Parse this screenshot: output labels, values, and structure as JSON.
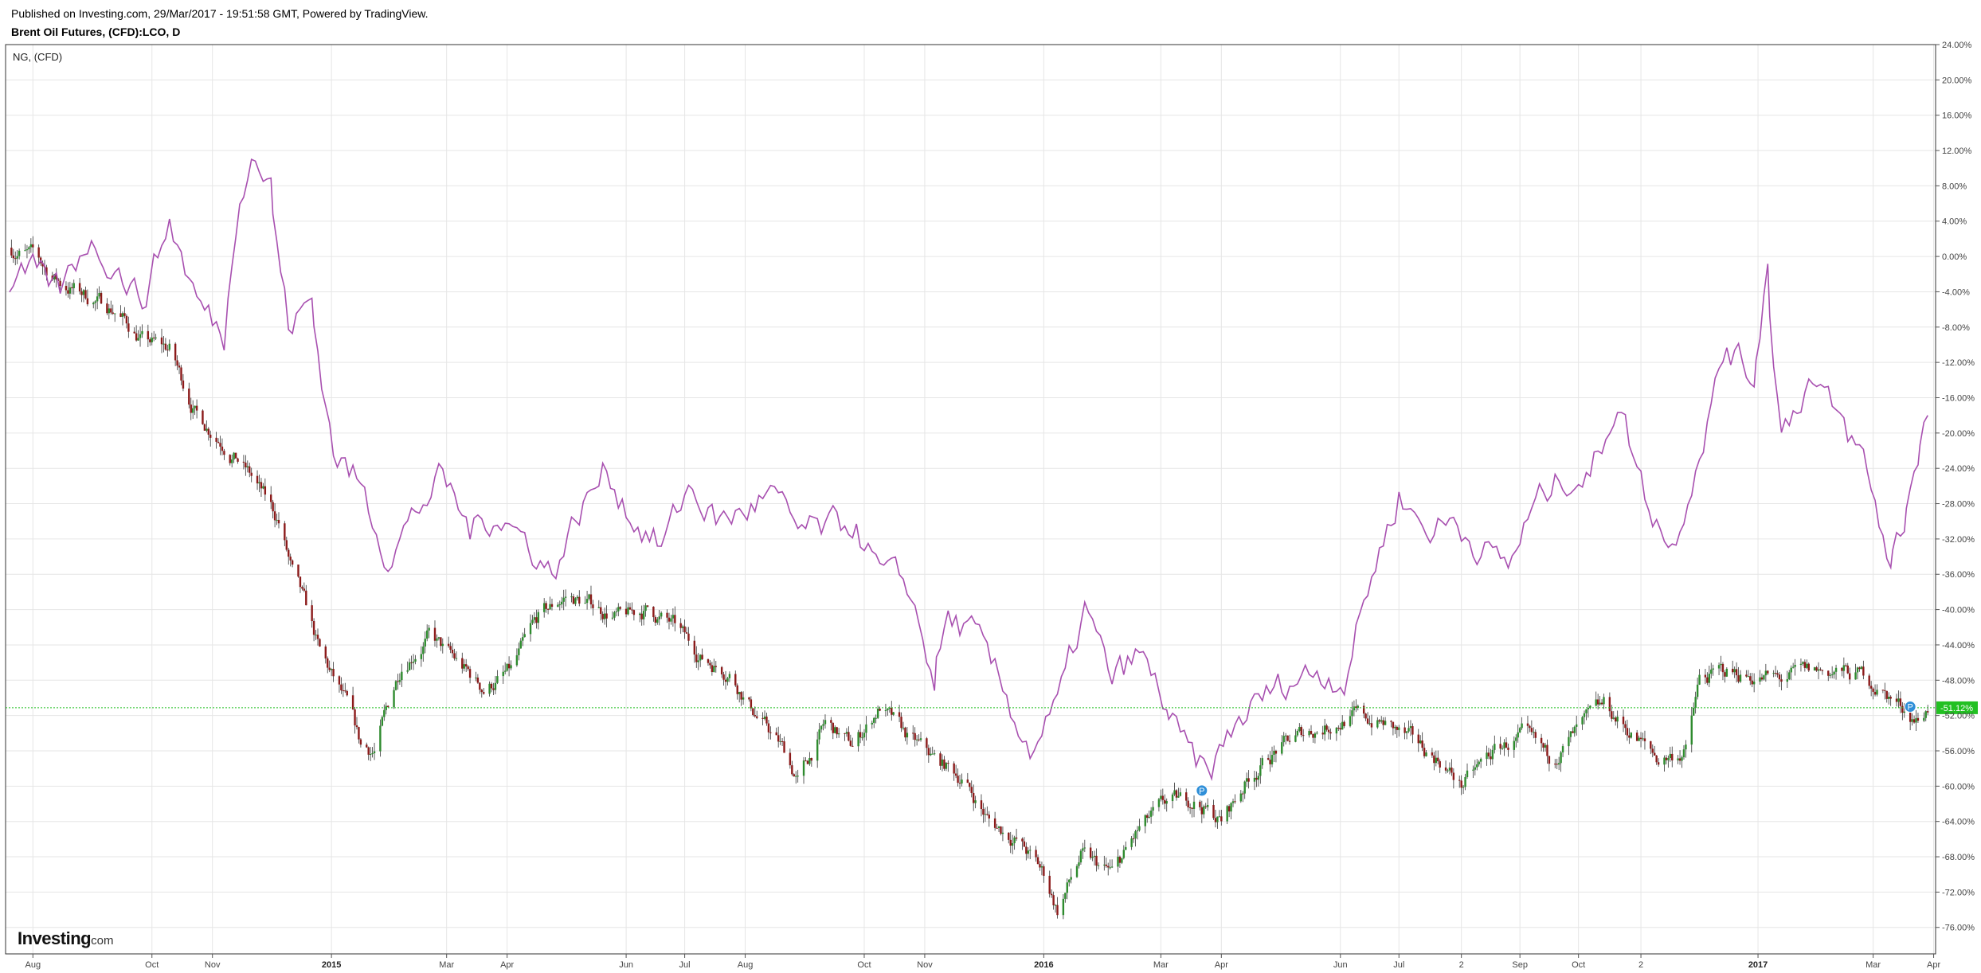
{
  "header": {
    "published": "Published on Investing.com, 29/Mar/2017 - 19:51:58 GMT, Powered by TradingView.",
    "title": "Brent Oil Futures, (CFD):LCO, D"
  },
  "legend": {
    "compare_label": "NG,  (CFD)"
  },
  "brand": {
    "name": "Investing",
    "suffix": ".com"
  },
  "colors": {
    "up_candle": "#2e8b2e",
    "down_candle": "#8b1a1a",
    "compare_line": "#a850b0",
    "last_price_line": "#22c022",
    "grid": "#e6e6e6",
    "marker": "#2f8fd8"
  },
  "chart_data": [
    {
      "type": "candlestick",
      "name": "Brent Oil Futures, (CFD):LCO, D",
      "y_unit": "percent change",
      "ylim": [
        -79,
        24
      ],
      "grid": true,
      "x": [
        "2014-07-20",
        "2014-08-01",
        "2014-08-15",
        "2014-08-29",
        "2014-09-12",
        "2014-09-26",
        "2014-10-10",
        "2014-10-24",
        "2014-11-07",
        "2014-11-21",
        "2014-12-05",
        "2014-12-12",
        "2014-12-19",
        "2014-12-26",
        "2015-01-09",
        "2015-01-16",
        "2015-01-23",
        "2015-02-06",
        "2015-02-20",
        "2015-03-06",
        "2015-03-20",
        "2015-04-03",
        "2015-04-17",
        "2015-05-01",
        "2015-05-15",
        "2015-05-29",
        "2015-06-12",
        "2015-06-26",
        "2015-07-10",
        "2015-07-24",
        "2015-08-07",
        "2015-08-21",
        "2015-08-28",
        "2015-09-11",
        "2015-09-25",
        "2015-10-09",
        "2015-10-23",
        "2015-11-06",
        "2015-11-20",
        "2015-12-04",
        "2015-12-18",
        "2016-01-01",
        "2016-01-08",
        "2016-01-20",
        "2016-02-05",
        "2016-02-19",
        "2016-03-04",
        "2016-03-18",
        "2016-04-01",
        "2016-04-15",
        "2016-04-29",
        "2016-05-13",
        "2016-05-27",
        "2016-06-08",
        "2016-06-24",
        "2016-07-08",
        "2016-07-22",
        "2016-08-02",
        "2016-08-19",
        "2016-09-02",
        "2016-09-16",
        "2016-09-30",
        "2016-10-14",
        "2016-10-28",
        "2016-11-11",
        "2016-11-25",
        "2016-12-02",
        "2016-12-16",
        "2016-12-30",
        "2017-01-13",
        "2017-01-27",
        "2017-02-10",
        "2017-02-24",
        "2017-03-10",
        "2017-03-24",
        "2017-03-29"
      ],
      "values": [
        1.0,
        0.0,
        -3.0,
        -4.5,
        -6.0,
        -9.5,
        -10.5,
        -18.0,
        -21.0,
        -25.0,
        -30.0,
        -36.0,
        -40.0,
        -45.0,
        -51.0,
        -55.5,
        -56.0,
        -46.0,
        -43.0,
        -46.0,
        -49.0,
        -47.0,
        -41.0,
        -38.5,
        -39.5,
        -41.0,
        -40.0,
        -42.0,
        -45.5,
        -47.0,
        -52.0,
        -56.0,
        -59.5,
        -53.0,
        -55.5,
        -51.0,
        -54.5,
        -57.0,
        -59.0,
        -64.0,
        -66.0,
        -70.0,
        -74.0,
        -68.0,
        -70.0,
        -65.0,
        -62.0,
        -61.5,
        -64.0,
        -59.0,
        -56.0,
        -54.0,
        -53.0,
        -52.0,
        -53.0,
        -55.0,
        -57.0,
        -60.0,
        -56.0,
        -54.5,
        -57.0,
        -54.0,
        -51.0,
        -54.0,
        -57.0,
        -56.0,
        -48.0,
        -47.0,
        -47.5,
        -48.0,
        -47.0,
        -47.0,
        -47.5,
        -50.0,
        -52.5,
        -51.1
      ]
    },
    {
      "type": "line",
      "name": "NG,  (CFD)",
      "y_unit": "percent change",
      "x": [
        "2014-07-20",
        "2014-08-01",
        "2014-08-15",
        "2014-08-29",
        "2014-09-12",
        "2014-09-26",
        "2014-10-10",
        "2014-10-24",
        "2014-11-07",
        "2014-11-15",
        "2014-11-21",
        "2014-12-01",
        "2014-12-10",
        "2014-12-22",
        "2015-01-02",
        "2015-01-16",
        "2015-01-30",
        "2015-02-13",
        "2015-02-27",
        "2015-03-13",
        "2015-03-27",
        "2015-04-10",
        "2015-04-24",
        "2015-05-08",
        "2015-05-22",
        "2015-06-05",
        "2015-06-19",
        "2015-07-03",
        "2015-07-17",
        "2015-07-31",
        "2015-08-14",
        "2015-08-28",
        "2015-09-11",
        "2015-09-25",
        "2015-10-09",
        "2015-10-23",
        "2015-11-06",
        "2015-11-13",
        "2015-11-27",
        "2015-12-11",
        "2015-12-25",
        "2016-01-08",
        "2016-01-22",
        "2016-02-05",
        "2016-02-19",
        "2016-03-04",
        "2016-03-11",
        "2016-03-25",
        "2016-04-08",
        "2016-04-22",
        "2016-05-06",
        "2016-05-20",
        "2016-06-03",
        "2016-06-17",
        "2016-07-01",
        "2016-07-15",
        "2016-07-29",
        "2016-08-12",
        "2016-08-26",
        "2016-09-09",
        "2016-09-23",
        "2016-10-07",
        "2016-10-21",
        "2016-11-04",
        "2016-11-18",
        "2016-12-02",
        "2016-12-16",
        "2016-12-30",
        "2017-01-06",
        "2017-01-13",
        "2017-01-27",
        "2017-02-10",
        "2017-02-24",
        "2017-03-10",
        "2017-03-17",
        "2017-03-24",
        "2017-03-29"
      ],
      "values": [
        -3.0,
        -2.0,
        -4.0,
        2.0,
        -1.0,
        -5.0,
        4.0,
        -5.0,
        -9.0,
        8.0,
        12.0,
        8.0,
        -8.0,
        -5.0,
        -22.0,
        -26.0,
        -34.0,
        -29.0,
        -25.0,
        -31.0,
        -29.0,
        -32.0,
        -36.0,
        -29.0,
        -24.0,
        -30.0,
        -33.0,
        -26.0,
        -30.0,
        -29.0,
        -27.0,
        -31.0,
        -31.0,
        -30.0,
        -36.0,
        -37.0,
        -48.0,
        -41.0,
        -43.0,
        -49.0,
        -56.0,
        -51.0,
        -40.0,
        -48.0,
        -45.0,
        -51.0,
        -55.0,
        -59.0,
        -53.0,
        -50.0,
        -48.0,
        -47.0,
        -48.0,
        -36.0,
        -27.0,
        -31.0,
        -30.0,
        -33.0,
        -35.0,
        -28.0,
        -25.0,
        -25.0,
        -16.0,
        -27.0,
        -33.0,
        -22.0,
        -10.0,
        -14.0,
        -1.0,
        -20.0,
        -14.0,
        -18.0,
        -23.0,
        -35.0,
        -30.0,
        -22.0,
        -18.0
      ]
    }
  ],
  "y_ticks": [
    "24.00%",
    "20.00%",
    "16.00%",
    "12.00%",
    "8.00%",
    "4.00%",
    "0.00%",
    "-4.00%",
    "-8.00%",
    "-12.00%",
    "-16.00%",
    "-20.00%",
    "-24.00%",
    "-28.00%",
    "-32.00%",
    "-36.00%",
    "-40.00%",
    "-44.00%",
    "-48.00%",
    "-52.00%",
    "-56.00%",
    "-60.00%",
    "-64.00%",
    "-68.00%",
    "-72.00%",
    "-76.00%"
  ],
  "y_tick_values": [
    24,
    20,
    16,
    12,
    8,
    4,
    0,
    -4,
    -8,
    -12,
    -16,
    -20,
    -24,
    -28,
    -32,
    -36,
    -40,
    -44,
    -48,
    -52,
    -56,
    -60,
    -64,
    -68,
    -72,
    -76
  ],
  "x_ticks": [
    {
      "label": "Aug",
      "date": "2014-08-01",
      "bold": false
    },
    {
      "label": "Oct",
      "date": "2014-10-01",
      "bold": false
    },
    {
      "label": "Nov",
      "date": "2014-11-01",
      "bold": false
    },
    {
      "label": "2015",
      "date": "2015-01-01",
      "bold": true
    },
    {
      "label": "Mar",
      "date": "2015-03-01",
      "bold": false
    },
    {
      "label": "Apr",
      "date": "2015-04-01",
      "bold": false
    },
    {
      "label": "Jun",
      "date": "2015-06-01",
      "bold": false
    },
    {
      "label": "Jul",
      "date": "2015-07-01",
      "bold": false
    },
    {
      "label": "Aug",
      "date": "2015-08-01",
      "bold": false
    },
    {
      "label": "Oct",
      "date": "2015-10-01",
      "bold": false
    },
    {
      "label": "Nov",
      "date": "2015-11-01",
      "bold": false
    },
    {
      "label": "2016",
      "date": "2016-01-01",
      "bold": true
    },
    {
      "label": "Mar",
      "date": "2016-03-01",
      "bold": false
    },
    {
      "label": "Apr",
      "date": "2016-04-01",
      "bold": false
    },
    {
      "label": "Jun",
      "date": "2016-06-01",
      "bold": false
    },
    {
      "label": "Jul",
      "date": "2016-07-01",
      "bold": false
    },
    {
      "label": "2",
      "date": "2016-08-02",
      "bold": false
    },
    {
      "label": "Sep",
      "date": "2016-09-01",
      "bold": false
    },
    {
      "label": "Oct",
      "date": "2016-10-01",
      "bold": false
    },
    {
      "label": "2",
      "date": "2016-11-02",
      "bold": false
    },
    {
      "label": "2017",
      "date": "2017-01-01",
      "bold": true
    },
    {
      "label": "Mar",
      "date": "2017-03-01",
      "bold": false
    },
    {
      "label": "Apr",
      "date": "2017-04-01",
      "bold": false
    }
  ],
  "x_range": [
    "2014-07-18",
    "2017-04-02"
  ],
  "last_price": {
    "value": -51.12,
    "label": "-51.12%"
  },
  "markers": [
    {
      "date": "2016-03-22",
      "value": -60.5,
      "label": "P"
    },
    {
      "date": "2017-03-20",
      "value": -51.0,
      "label": "P"
    }
  ]
}
